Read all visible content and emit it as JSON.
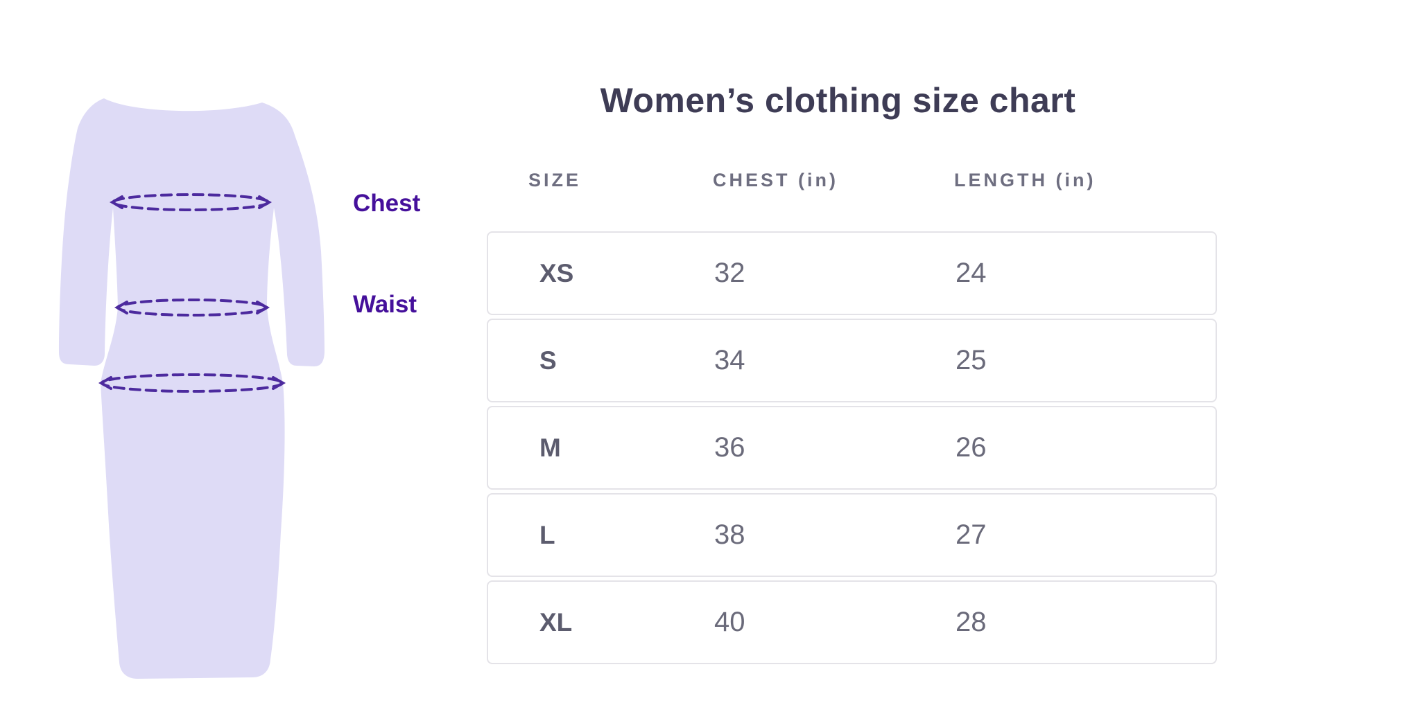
{
  "title": "Women’s clothing size chart",
  "illustration": {
    "description": "dress silhouette with dashed measurement ellipses",
    "labels": {
      "chest": "Chest",
      "waist": "Waist"
    },
    "measure_lines": [
      "chest-line",
      "waist-line",
      "hip-line"
    ],
    "colors": {
      "dress_fill": "#DEDBF6",
      "measure_dash": "#4C2A9E",
      "label_text": "#45109B"
    }
  },
  "chart_data": {
    "type": "table",
    "title": "Women’s clothing size chart",
    "columns": [
      "SIZE",
      "CHEST (in)",
      "LENGTH (in)"
    ],
    "rows": [
      [
        "XS",
        "32",
        "24"
      ],
      [
        "S",
        "34",
        "25"
      ],
      [
        "M",
        "36",
        "26"
      ],
      [
        "L",
        "38",
        "27"
      ],
      [
        "XL",
        "40",
        "28"
      ]
    ]
  },
  "colors": {
    "background": "#FFFFFF",
    "title_text": "#3E3C55",
    "header_text": "#6E6E80",
    "size_text": "#5C5C6E",
    "value_text": "#6A6A7A",
    "row_border": "#E4E3E8"
  }
}
